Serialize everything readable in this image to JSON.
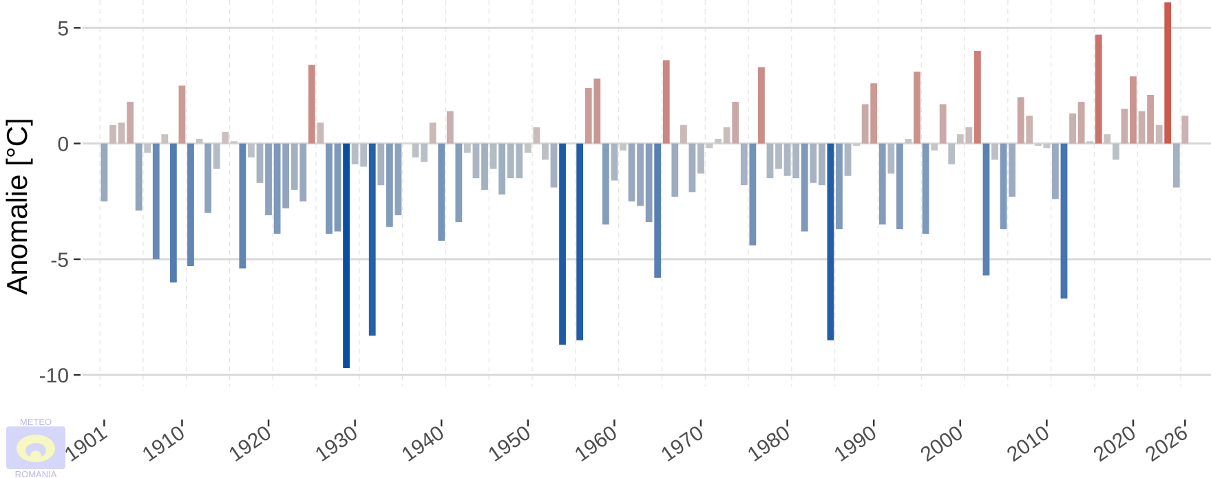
{
  "chart_data": {
    "type": "bar",
    "title": "",
    "xlabel": "",
    "ylabel": "Anomalie [°C]",
    "ylim": [
      -10.5,
      6.2
    ],
    "xlim": [
      1898.5,
      2029
    ],
    "grid": true,
    "yticks": [
      5,
      0,
      -5,
      -10
    ],
    "ytick_labels": [
      "5",
      "0",
      "-5",
      "-10"
    ],
    "xticks": [
      1901,
      1910,
      1920,
      1930,
      1940,
      1950,
      1960,
      1970,
      1980,
      1990,
      2000,
      2010,
      2020,
      2026
    ],
    "xtick_labels": [
      "1901",
      "1910",
      "1920",
      "1930",
      "1940",
      "1950",
      "1960",
      "1970",
      "1980",
      "1990",
      "2000",
      "2010",
      "2020",
      "2026"
    ],
    "color_scale": {
      "low": "#0a4ea3",
      "mid": "#c9c9c9",
      "high": "#cc5a4f"
    },
    "x": [
      1901,
      1902,
      1903,
      1904,
      1905,
      1906,
      1907,
      1908,
      1909,
      1910,
      1911,
      1912,
      1913,
      1914,
      1915,
      1916,
      1917,
      1918,
      1919,
      1920,
      1921,
      1922,
      1923,
      1924,
      1925,
      1926,
      1927,
      1928,
      1929,
      1930,
      1931,
      1932,
      1933,
      1934,
      1935,
      1936,
      1937,
      1938,
      1939,
      1940,
      1941,
      1942,
      1943,
      1944,
      1945,
      1946,
      1947,
      1948,
      1949,
      1950,
      1951,
      1952,
      1953,
      1954,
      1955,
      1956,
      1957,
      1958,
      1959,
      1960,
      1961,
      1962,
      1963,
      1964,
      1965,
      1966,
      1967,
      1968,
      1969,
      1970,
      1971,
      1972,
      1973,
      1974,
      1975,
      1976,
      1977,
      1978,
      1979,
      1980,
      1981,
      1982,
      1983,
      1984,
      1985,
      1986,
      1987,
      1988,
      1989,
      1990,
      1991,
      1992,
      1993,
      1994,
      1995,
      1996,
      1997,
      1998,
      1999,
      2000,
      2001,
      2002,
      2003,
      2004,
      2005,
      2006,
      2007,
      2008,
      2009,
      2010,
      2011,
      2012,
      2013,
      2014,
      2015,
      2016,
      2017,
      2018,
      2019,
      2020,
      2021,
      2022,
      2023,
      2024,
      2025,
      2026
    ],
    "values": [
      -2.5,
      0.8,
      0.9,
      1.8,
      -2.9,
      -0.4,
      -5.0,
      0.4,
      -6.0,
      2.5,
      -5.3,
      0.2,
      -3.0,
      -1.1,
      0.5,
      0.1,
      -5.4,
      -0.6,
      -1.7,
      -3.1,
      -3.9,
      -2.8,
      -2.0,
      -2.5,
      3.4,
      0.9,
      -3.9,
      -3.8,
      -9.7,
      -0.9,
      -1.0,
      -8.3,
      -1.8,
      -3.6,
      -3.1,
      0.0,
      -0.6,
      -0.8,
      0.9,
      -4.2,
      1.4,
      -3.4,
      -0.4,
      -1.5,
      -2.0,
      -1.1,
      -2.2,
      -1.5,
      -1.5,
      -0.4,
      0.7,
      -0.7,
      -1.9,
      -8.7,
      0.0,
      -8.5,
      2.4,
      2.8,
      -3.5,
      -1.6,
      -0.3,
      -2.5,
      -2.7,
      -3.4,
      -5.8,
      3.6,
      -2.3,
      0.8,
      -2.1,
      -1.3,
      -0.2,
      0.2,
      0.7,
      1.8,
      -1.8,
      -4.4,
      3.3,
      -1.5,
      -1.1,
      -1.4,
      -1.5,
      -3.8,
      -1.7,
      -1.8,
      -8.5,
      -3.7,
      -1.4,
      -0.1,
      1.7,
      2.6,
      -3.5,
      -1.3,
      -3.7,
      0.2,
      3.1,
      -3.9,
      -0.3,
      1.7,
      -0.9,
      0.4,
      0.7,
      4.0,
      -5.7,
      -0.7,
      -3.7,
      -2.3,
      2.0,
      1.2,
      -0.1,
      -0.2,
      -2.4,
      -6.7,
      1.3,
      1.8,
      0.1,
      4.7,
      0.4,
      -0.7,
      1.5,
      2.9,
      1.4,
      2.1,
      0.8,
      6.1,
      -1.9,
      1.2
    ]
  },
  "logo": {
    "line1": "METEO",
    "line2": "ROMANIA"
  }
}
